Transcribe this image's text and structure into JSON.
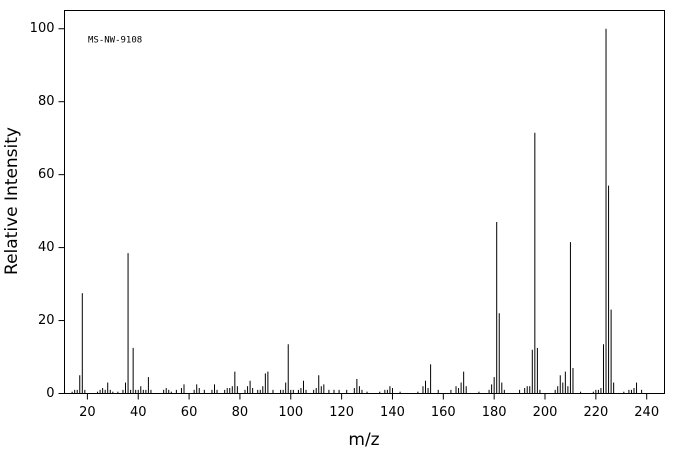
{
  "chart_data": {
    "type": "stem",
    "annotation": "MS-NW-9108",
    "xlabel": "m/z",
    "ylabel": "Relative Intensity",
    "x": [
      14,
      15,
      16,
      17,
      18,
      19,
      24,
      25,
      26,
      27,
      28,
      29,
      30,
      32,
      34,
      35,
      36,
      37,
      38,
      39,
      40,
      41,
      42,
      43,
      44,
      45,
      50,
      51,
      52,
      53,
      55,
      57,
      58,
      62,
      63,
      64,
      66,
      69,
      70,
      71,
      74,
      75,
      76,
      77,
      78,
      79,
      82,
      83,
      84,
      85,
      87,
      88,
      89,
      90,
      91,
      93,
      96,
      97,
      98,
      99,
      100,
      101,
      103,
      104,
      105,
      106,
      109,
      110,
      111,
      112,
      113,
      115,
      117,
      119,
      122,
      125,
      126,
      127,
      128,
      130,
      135,
      137,
      138,
      139,
      140,
      143,
      150,
      152,
      153,
      154,
      155,
      158,
      163,
      165,
      166,
      167,
      168,
      169,
      174,
      178,
      179,
      180,
      181,
      182,
      183,
      184,
      190,
      192,
      193,
      194,
      195,
      196,
      197,
      198,
      204,
      205,
      206,
      207,
      208,
      209,
      210,
      211,
      214,
      219,
      220,
      221,
      222,
      223,
      224,
      225,
      226,
      227,
      231,
      233,
      234,
      235,
      236,
      238
    ],
    "values": [
      0.5,
      1,
      1,
      5,
      27.5,
      1,
      0.5,
      1,
      1.5,
      1,
      3,
      1,
      0.5,
      0.5,
      1,
      3,
      38.5,
      1,
      12.5,
      1,
      1,
      2,
      1,
      1,
      4.5,
      1,
      1,
      1.5,
      1,
      0.5,
      1,
      1.5,
      2.5,
      1,
      2.5,
      1.5,
      1,
      1,
      2.5,
      1,
      1,
      1.5,
      1.5,
      2,
      6,
      2,
      1,
      2,
      3.5,
      1.5,
      1,
      1,
      2,
      5.5,
      6,
      1,
      1,
      1,
      3,
      13.5,
      1,
      1,
      1,
      1.5,
      3.5,
      1,
      1,
      1.5,
      5,
      2,
      2.5,
      1,
      1,
      1,
      1,
      1.5,
      4,
      2,
      1,
      0.5,
      0.5,
      1,
      1,
      2,
      1.5,
      0.5,
      0.5,
      2,
      3.5,
      1.5,
      8,
      1,
      1,
      2,
      1.5,
      3,
      6,
      2,
      0.5,
      1,
      2.5,
      4.5,
      47,
      22,
      3,
      1,
      1,
      1.5,
      2,
      2,
      12,
      71.5,
      12.5,
      1,
      1,
      2,
      5,
      3,
      6,
      2,
      41.5,
      7,
      0.5,
      0.5,
      1,
      1,
      1.5,
      13.5,
      100,
      57,
      23,
      3,
      0.5,
      1,
      1,
      1.5,
      3,
      1
    ],
    "color": "#000000",
    "xlim": [
      11,
      247
    ],
    "ylim": [
      0,
      105
    ],
    "xticks": [
      20,
      40,
      60,
      80,
      100,
      120,
      140,
      160,
      180,
      200,
      220,
      240
    ],
    "yticks": [
      0,
      20,
      40,
      60,
      80,
      100
    ]
  }
}
